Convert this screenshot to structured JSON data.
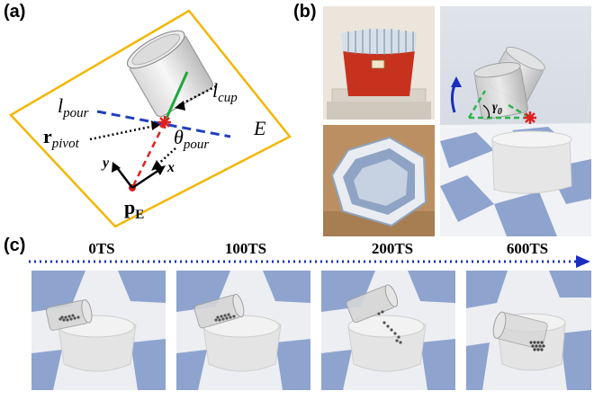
{
  "panels": {
    "a": {
      "label": "(a)"
    },
    "b": {
      "label": "(b)"
    },
    "c": {
      "label": "(c)"
    }
  },
  "diagram": {
    "l_pour": {
      "base": "l",
      "sub": "pour"
    },
    "l_cup": {
      "base": "l",
      "sub": "cup"
    },
    "r_pivot": {
      "base": "r",
      "sub": "pivot"
    },
    "theta_pour": {
      "base": "θ",
      "sub": "pour"
    },
    "p_E": {
      "base": "p",
      "sub": "E"
    },
    "frame_name": "E",
    "axis_x": "x",
    "axis_y": "y"
  },
  "sim_label": {
    "base": "γ",
    "sub": "0"
  },
  "timeline": [
    {
      "label": "0TS"
    },
    {
      "label": "100TS"
    },
    {
      "label": "200TS"
    },
    {
      "label": "600TS"
    }
  ],
  "colors": {
    "frame": "#F2B705",
    "pour_line": "#1F3FBF",
    "cup_line": "#1FA83A",
    "pivot": "#E0201F",
    "arrow_blue": "#1A2FBF",
    "sim_green": "#2DB34A"
  }
}
